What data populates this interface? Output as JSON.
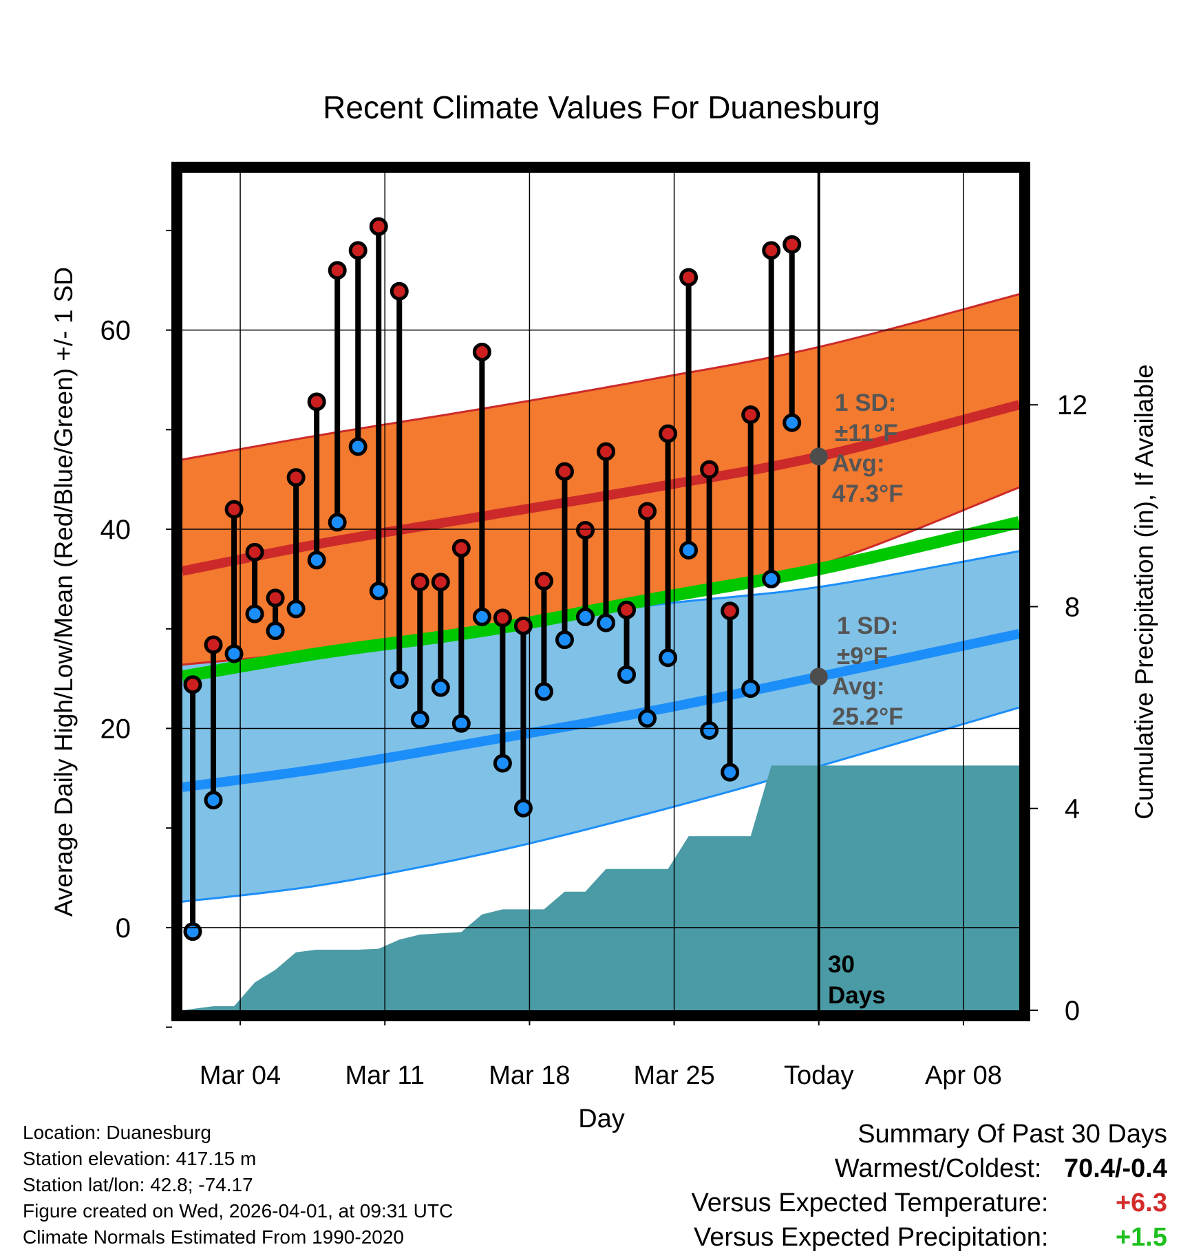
{
  "chart_data": {
    "type": "line",
    "title": "Recent Climate Values For Duanesburg",
    "xlabel": "Day",
    "ylabel": "Average Daily High/Low/Mean (Red/Blue/Green) +/- 1 SD",
    "y2label": "Cumulative Precipitation (in), If Available",
    "x_tick_labels": [
      "Mar 04",
      "Mar 11",
      "Mar 18",
      "Mar 25",
      "Today",
      "Apr 08"
    ],
    "x_tick_days": [
      4,
      11,
      18,
      25,
      32,
      39
    ],
    "xlim": [
      1.2,
      41.7
    ],
    "today_day": 32,
    "ylim": [
      -8.3,
      75.8
    ],
    "y_ticks": [
      0,
      20,
      40,
      60
    ],
    "y_minor_ticks": [
      -10,
      10,
      30,
      50,
      70
    ],
    "y2lim": [
      0,
      16.6
    ],
    "y2_ticks": [
      0,
      4,
      8,
      12
    ],
    "normals": {
      "x": [
        1.2,
        8,
        16,
        24,
        32,
        41.7
      ],
      "high_mean": [
        35.8,
        38.6,
        41.4,
        44.2,
        47.3,
        52.5
      ],
      "high_upper": [
        47.0,
        49.5,
        52.2,
        55.1,
        58.3,
        63.6
      ],
      "high_lower": [
        26.4,
        27.8,
        30.1,
        32.9,
        36.4,
        44.2
      ],
      "low_mean": [
        14.1,
        16.0,
        18.8,
        21.8,
        25.2,
        29.5
      ],
      "low_upper": [
        26.6,
        28.3,
        30.1,
        32.4,
        34.2,
        37.8
      ],
      "low_lower": [
        2.6,
        4.3,
        7.5,
        11.6,
        16.2,
        22.1
      ],
      "avg_mean": [
        25.2,
        27.6,
        29.9,
        33.0,
        36.0,
        40.7
      ]
    },
    "series": [
      {
        "name": "Daily High",
        "color": "#cc1f1f",
        "values": [
          24.4,
          28.4,
          42.0,
          37.7,
          33.1,
          45.2,
          52.8,
          66.0,
          68.0,
          70.4,
          63.9,
          34.7,
          34.7,
          38.1,
          57.8,
          31.1,
          30.3,
          34.8,
          45.8,
          39.9,
          47.8,
          31.9,
          41.8,
          49.6,
          65.3,
          46.0,
          31.8,
          51.5,
          68.0,
          68.6
        ]
      },
      {
        "name": "Daily Low",
        "color": "#1c8ef9",
        "values": [
          -0.4,
          12.8,
          27.5,
          31.5,
          29.8,
          32.0,
          36.9,
          40.7,
          48.3,
          33.8,
          24.9,
          20.9,
          24.1,
          20.5,
          31.2,
          16.5,
          12.0,
          23.7,
          28.9,
          31.2,
          30.6,
          25.4,
          21.0,
          27.1,
          37.9,
          19.8,
          15.6,
          24.0,
          35.0,
          50.7
        ]
      }
    ],
    "high_low_days": [
      1.7,
      2.7,
      3.7,
      4.7,
      5.7,
      6.7,
      7.7,
      8.7,
      9.7,
      10.7,
      11.7,
      12.7,
      13.7,
      14.7,
      15.7,
      16.7,
      17.7,
      18.7,
      19.7,
      20.7,
      21.7,
      22.7,
      23.7,
      24.7,
      25.7,
      26.7,
      27.7,
      28.7,
      29.7,
      30.7
    ],
    "precip": {
      "name": "Cumulative Precipitation",
      "color": "#4a9ba5",
      "x": [
        1.2,
        2.7,
        3.7,
        4.7,
        5.7,
        6.7,
        7.7,
        9.7,
        10.7,
        11.7,
        12.7,
        14.7,
        15.7,
        16.7,
        18.2,
        18.7,
        19.7,
        20.7,
        21.7,
        22.7,
        24.7,
        25.7,
        26.7,
        28.7,
        29.7,
        30.7,
        41.7
      ],
      "values": [
        0.0,
        0.08,
        0.08,
        0.55,
        0.8,
        1.15,
        1.2,
        1.2,
        1.22,
        1.4,
        1.5,
        1.55,
        1.9,
        2.0,
        2.0,
        2.0,
        2.35,
        2.35,
        2.8,
        2.8,
        2.8,
        3.45,
        3.45,
        3.45,
        4.85,
        4.85,
        4.85
      ]
    },
    "annotations": {
      "high_sd": "1 SD:",
      "high_sd_value": "±11°F",
      "high_avg_label": "Avg:",
      "high_avg_value": "47.3°F",
      "low_sd": "1 SD:",
      "low_sd_value": "±9°F",
      "low_avg_label": "Avg:",
      "low_avg_value": "25.2°F",
      "days_count": "30",
      "days_label": "Days"
    }
  },
  "info": {
    "location": "Location: Duanesburg",
    "elevation": "Station elevation: 417.15 m",
    "latlon": "Station lat/lon: 42.8; -74.17",
    "created": "Figure created on Wed, 2026-04-01, at 09:31 UTC",
    "normals": "Climate Normals Estimated From 1990-2020"
  },
  "summary": {
    "title": "Summary Of Past 30 Days",
    "warm_cold_label": "Warmest/Coldest:",
    "warm_cold_value": "70.4/-0.4",
    "temp_label": "Versus Expected Temperature:",
    "temp_value": "+6.3",
    "temp_color": "#d42a2a",
    "precip_label": "Versus Expected Precipitation:",
    "precip_value": "+1.5",
    "precip_color": "#1dbf1d"
  },
  "colors": {
    "high_band": "#f47a2f",
    "high_line": "#cc2a2a",
    "low_band": "#80c1e7",
    "low_line": "#1c8ef9",
    "avg_line": "#00c800",
    "annotation": "#555555"
  }
}
